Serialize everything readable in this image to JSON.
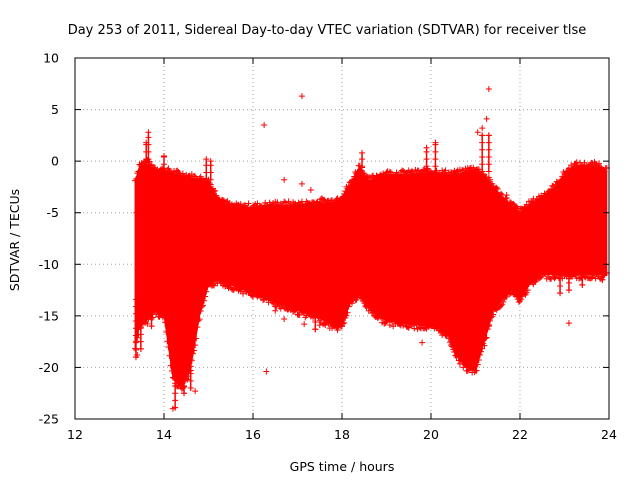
{
  "chart_data": {
    "type": "scatter",
    "title": "Day 253 of 2011, Sidereal Day-to-day VTEC variation (SDTVAR) for receiver tlse",
    "xlabel": "GPS time / hours",
    "ylabel": "SDTVAR / TECUs",
    "xlim": [
      12,
      24
    ],
    "ylim": [
      -25,
      10
    ],
    "xticks": [
      12,
      14,
      16,
      18,
      20,
      22,
      24
    ],
    "yticks": [
      -25,
      -20,
      -15,
      -10,
      -5,
      0,
      5,
      10
    ],
    "grid": true,
    "marker": "+",
    "color": "#ff0000",
    "envelope": {
      "x": [
        13.35,
        13.45,
        13.6,
        13.8,
        14.0,
        14.2,
        14.4,
        14.6,
        14.8,
        15.0,
        15.2,
        15.5,
        16.0,
        16.5,
        17.0,
        17.5,
        17.8,
        18.0,
        18.2,
        18.4,
        18.6,
        18.8,
        19.0,
        19.5,
        20.0,
        20.2,
        20.4,
        20.6,
        20.8,
        21.0,
        21.2,
        21.4,
        21.6,
        21.8,
        22.0,
        22.2,
        22.5,
        22.8,
        23.0,
        23.2,
        23.5,
        23.8,
        23.95
      ],
      "upper": [
        -2.0,
        -0.5,
        -0.2,
        -0.8,
        -1.0,
        -1.2,
        -1.4,
        -1.6,
        -1.8,
        -2.0,
        -3.5,
        -4.5,
        -4.5,
        -4.3,
        -4.3,
        -4.1,
        -4.0,
        -3.5,
        -2.2,
        -0.5,
        -2.0,
        -1.5,
        -1.3,
        -1.3,
        -1.1,
        -1.2,
        -1.3,
        -1.3,
        -1.0,
        -0.8,
        -1.5,
        -2.5,
        -3.5,
        -4.3,
        -5.0,
        -4.3,
        -3.5,
        -2.5,
        -1.3,
        -0.5,
        -0.5,
        -0.5,
        -1.0
      ],
      "lower": [
        -18.0,
        -16.0,
        -15.5,
        -14.5,
        -15.0,
        -21.0,
        -22.0,
        -20.0,
        -15.0,
        -12.0,
        -11.5,
        -12.0,
        -12.8,
        -13.7,
        -14.5,
        -15.2,
        -16.0,
        -16.0,
        -13.5,
        -13.0,
        -14.2,
        -15.0,
        -15.5,
        -15.8,
        -16.0,
        -16.3,
        -17.0,
        -19.0,
        -20.0,
        -20.3,
        -17.5,
        -14.5,
        -13.5,
        -12.5,
        -13.5,
        -12.0,
        -11.0,
        -11.0,
        -11.0,
        -11.0,
        -11.0,
        -11.0,
        -11.0
      ]
    },
    "spikes": [
      {
        "x": 13.37,
        "y0": -13.0,
        "y1": -19.0
      },
      {
        "x": 13.48,
        "y0": -10.0,
        "y1": -18.2
      },
      {
        "x": 13.72,
        "y0": -12.0,
        "y1": -16.0
      },
      {
        "x": 14.25,
        "y0": -14.0,
        "y1": -23.9
      },
      {
        "x": 14.45,
        "y0": -15.0,
        "y1": -22.5
      },
      {
        "x": 14.6,
        "y0": -14.0,
        "y1": -22.0
      },
      {
        "x": 17.4,
        "y0": -15.0,
        "y1": -16.3
      },
      {
        "x": 20.4,
        "y0": -15.5,
        "y1": -16.5
      },
      {
        "x": 21.3,
        "y0": -12.0,
        "y1": -16.0
      },
      {
        "x": 21.65,
        "y0": -12.0,
        "y1": -12.8
      },
      {
        "x": 22.9,
        "y0": -11.0,
        "y1": -12.8
      },
      {
        "x": 23.1,
        "y0": -11.0,
        "y1": -12.5
      },
      {
        "x": 23.4,
        "y0": -11.0,
        "y1": -12.0
      },
      {
        "x": 23.85,
        "y0": -11.0,
        "y1": -11.5
      },
      {
        "x": 13.65,
        "y0": -0.5,
        "y1": 2.8
      },
      {
        "x": 13.6,
        "y0": -0.5,
        "y1": 1.8
      },
      {
        "x": 14.0,
        "y0": -1.0,
        "y1": 0.5
      },
      {
        "x": 14.95,
        "y0": -1.8,
        "y1": 0.2
      },
      {
        "x": 15.05,
        "y0": -1.8,
        "y1": 0.0
      },
      {
        "x": 18.45,
        "y0": -0.5,
        "y1": 0.8
      },
      {
        "x": 19.9,
        "y0": -1.2,
        "y1": 1.3
      },
      {
        "x": 20.1,
        "y0": -1.2,
        "y1": 1.8
      },
      {
        "x": 21.15,
        "y0": -1.0,
        "y1": 2.5
      },
      {
        "x": 21.3,
        "y0": -1.0,
        "y1": 2.5
      }
    ],
    "outliers": [
      [
        17.1,
        6.3
      ],
      [
        16.25,
        3.5
      ],
      [
        21.3,
        7.0
      ],
      [
        21.25,
        4.1
      ],
      [
        21.15,
        3.2
      ],
      [
        21.05,
        2.8
      ],
      [
        16.3,
        -20.4
      ],
      [
        14.2,
        -24.0
      ],
      [
        23.1,
        -15.7
      ],
      [
        16.7,
        -1.8
      ],
      [
        16.7,
        -15.3
      ],
      [
        17.1,
        -2.2
      ],
      [
        17.15,
        -15.8
      ],
      [
        17.3,
        -2.8
      ],
      [
        17.55,
        -3.6
      ],
      [
        17.5,
        -15.9
      ],
      [
        19.5,
        -15.3
      ],
      [
        19.5,
        -16.1
      ],
      [
        19.8,
        -17.6
      ],
      [
        20.3,
        -4.0
      ],
      [
        22.0,
        -9.0
      ],
      [
        21.65,
        -4.0
      ],
      [
        21.7,
        -3.3
      ],
      [
        13.4,
        -18.8
      ],
      [
        13.38,
        -5.0
      ],
      [
        13.42,
        -7.5
      ],
      [
        14.7,
        -22.3
      ],
      [
        14.15,
        -13.5
      ],
      [
        18.55,
        -3.0
      ],
      [
        15.0,
        -3.0
      ],
      [
        19.0,
        -5.0
      ],
      [
        16.5,
        -14.5
      ],
      [
        20.6,
        -1.0
      ],
      [
        22.3,
        -4.0
      ],
      [
        23.5,
        -9.5
      ]
    ],
    "texture": {
      "x_step": 0.025,
      "per_column": 6
    }
  }
}
